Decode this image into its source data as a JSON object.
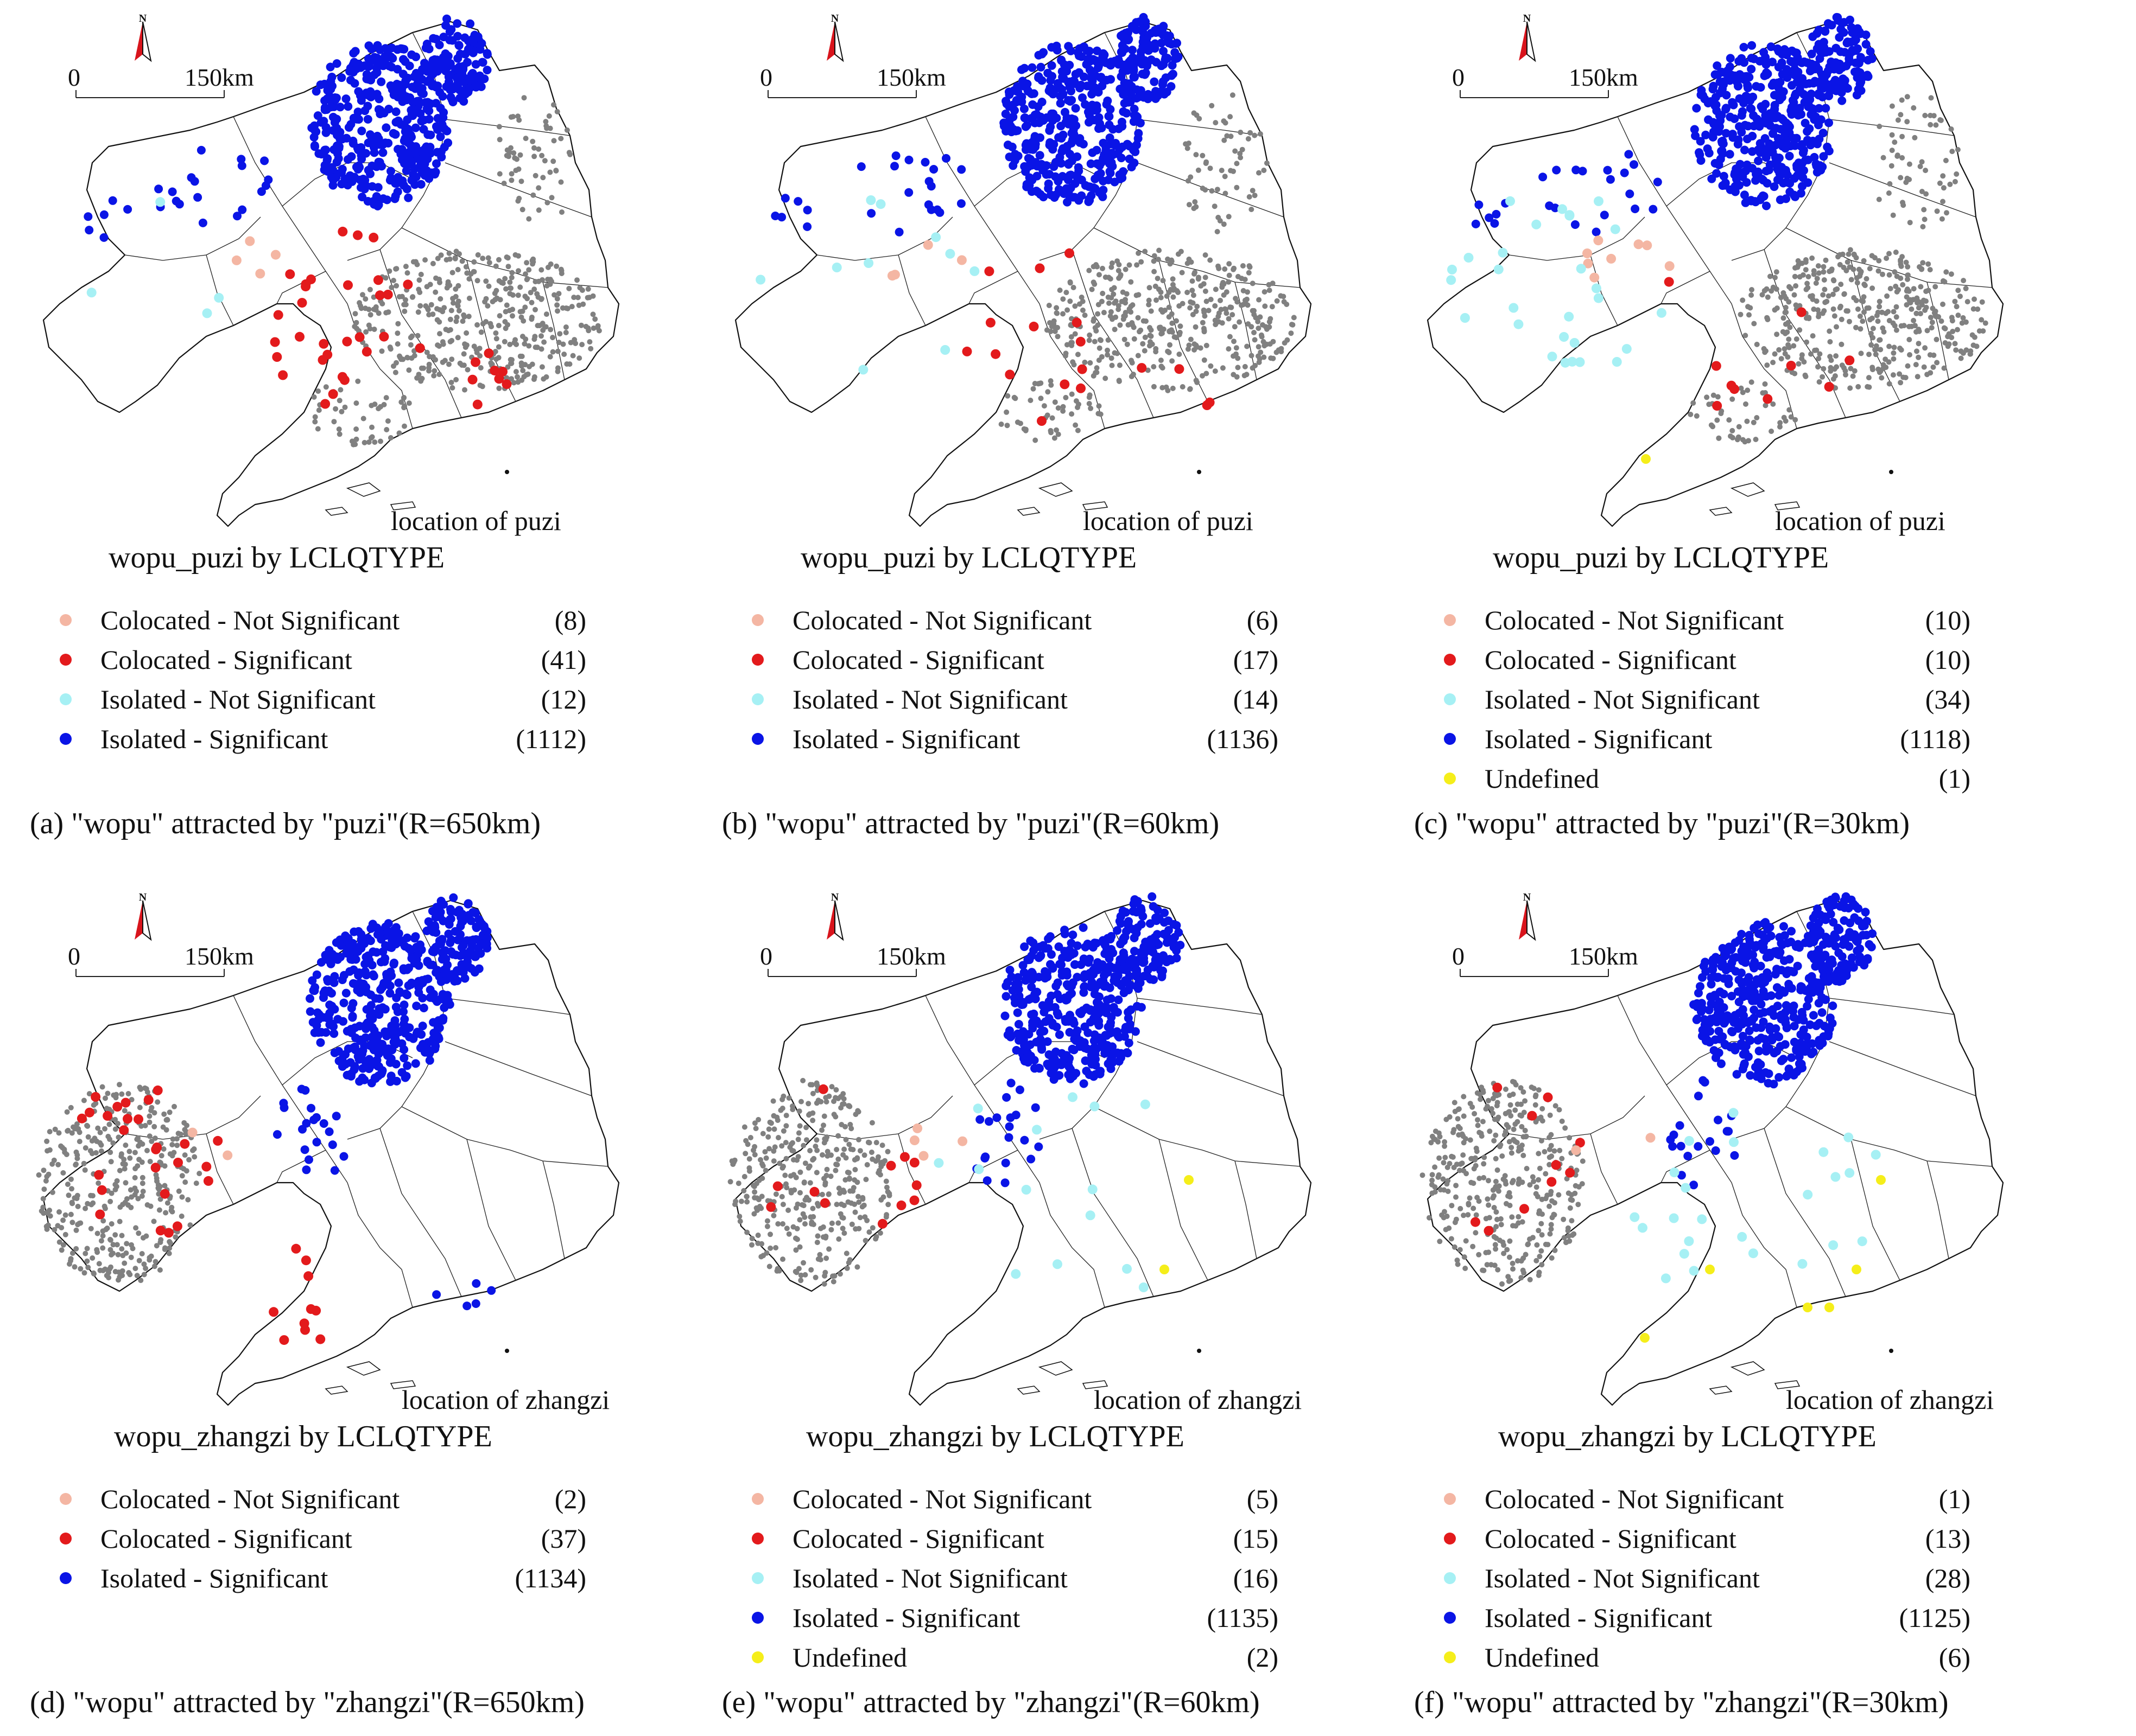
{
  "colors": {
    "colocated_not_significant": "#f4b6a3",
    "colocated_significant": "#e31a1c",
    "isolated_not_significant": "#a6f0f4",
    "isolated_significant": "#0a14e6",
    "undefined": "#f5ee1a",
    "background_points": "#808080",
    "north_arrow": "#d8141c"
  },
  "scale_bar": {
    "zero": "0",
    "distance": "150km"
  },
  "north_label": "N",
  "panels": [
    {
      "id": "a",
      "target": "puzi",
      "location_label": "location of puzi",
      "legend_title": "wopu_puzi by LCLQTYPE",
      "caption": "(a) \"wopu\" attracted by \"puzi\"(R=650km)",
      "legend": [
        {
          "label": "Colocated - Not Significant",
          "count": "(8)",
          "color": "#f4b6a3"
        },
        {
          "label": "Colocated - Significant",
          "count": "(41)",
          "color": "#e31a1c"
        },
        {
          "label": "Isolated - Not Significant",
          "count": "(12)",
          "color": "#a6f0f4"
        },
        {
          "label": "Isolated - Significant",
          "count": "(1112)",
          "color": "#0a14e6"
        }
      ]
    },
    {
      "id": "b",
      "target": "puzi",
      "location_label": "location of puzi",
      "legend_title": "wopu_puzi by LCLQTYPE",
      "caption": "(b) \"wopu\" attracted by \"puzi\"(R=60km)",
      "legend": [
        {
          "label": "Colocated - Not Significant",
          "count": "(6)",
          "color": "#f4b6a3"
        },
        {
          "label": "Colocated - Significant",
          "count": "(17)",
          "color": "#e31a1c"
        },
        {
          "label": "Isolated - Not Significant",
          "count": "(14)",
          "color": "#a6f0f4"
        },
        {
          "label": "Isolated - Significant",
          "count": "(1136)",
          "color": "#0a14e6"
        }
      ]
    },
    {
      "id": "c",
      "target": "puzi",
      "location_label": "location of puzi",
      "legend_title": "wopu_puzi by LCLQTYPE",
      "caption": "(c) \"wopu\" attracted by \"puzi\"(R=30km)",
      "legend": [
        {
          "label": "Colocated - Not Significant",
          "count": "(10)",
          "color": "#f4b6a3"
        },
        {
          "label": "Colocated - Significant",
          "count": "(10)",
          "color": "#e31a1c"
        },
        {
          "label": "Isolated - Not Significant",
          "count": "(34)",
          "color": "#a6f0f4"
        },
        {
          "label": "Isolated - Significant",
          "count": "(1118)",
          "color": "#0a14e6"
        },
        {
          "label": "Undefined",
          "count": "(1)",
          "color": "#f5ee1a"
        }
      ]
    },
    {
      "id": "d",
      "target": "zhangzi",
      "location_label": "location of zhangzi",
      "legend_title": "wopu_zhangzi by LCLQTYPE",
      "caption": "(d) \"wopu\" attracted by \"zhangzi\"(R=650km)",
      "legend": [
        {
          "label": "Colocated - Not Significant",
          "count": "(2)",
          "color": "#f4b6a3"
        },
        {
          "label": "Colocated - Significant",
          "count": "(37)",
          "color": "#e31a1c"
        },
        {
          "label": "Isolated - Significant",
          "count": "(1134)",
          "color": "#0a14e6"
        }
      ]
    },
    {
      "id": "e",
      "target": "zhangzi",
      "location_label": "location of zhangzi",
      "legend_title": "wopu_zhangzi by LCLQTYPE",
      "caption": "(e) \"wopu\" attracted by \"zhangzi\"(R=60km)",
      "legend": [
        {
          "label": "Colocated - Not Significant",
          "count": "(5)",
          "color": "#f4b6a3"
        },
        {
          "label": "Colocated - Significant",
          "count": "(15)",
          "color": "#e31a1c"
        },
        {
          "label": "Isolated - Not Significant",
          "count": "(16)",
          "color": "#a6f0f4"
        },
        {
          "label": "Isolated - Significant",
          "count": "(1135)",
          "color": "#0a14e6"
        },
        {
          "label": "Undefined",
          "count": "(2)",
          "color": "#f5ee1a"
        }
      ]
    },
    {
      "id": "f",
      "target": "zhangzi",
      "location_label": "location of zhangzi",
      "legend_title": "wopu_zhangzi by LCLQTYPE",
      "caption": "(f) \"wopu\" attracted by \"zhangzi\"(R=30km)",
      "legend": [
        {
          "label": "Colocated - Not Significant",
          "count": "(1)",
          "color": "#f4b6a3"
        },
        {
          "label": "Colocated - Significant",
          "count": "(13)",
          "color": "#e31a1c"
        },
        {
          "label": "Isolated - Not Significant",
          "count": "(28)",
          "color": "#a6f0f4"
        },
        {
          "label": "Isolated - Significant",
          "count": "(1125)",
          "color": "#0a14e6"
        },
        {
          "label": "Undefined",
          "count": "(6)",
          "color": "#f5ee1a"
        }
      ]
    }
  ]
}
